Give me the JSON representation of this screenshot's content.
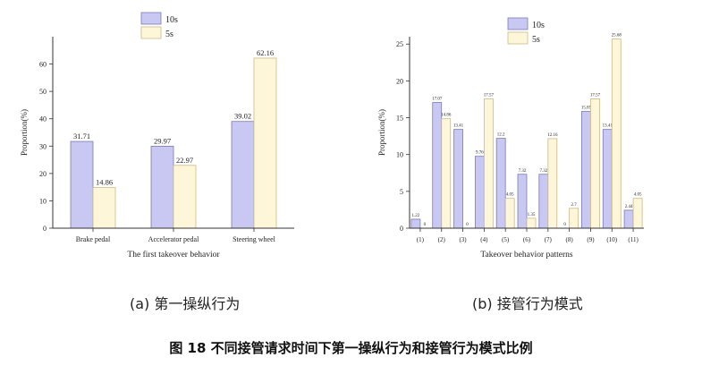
{
  "figure_caption": "图 18  不同接管请求时间下第一操纵行为和接管行为模式比例",
  "chart_data": [
    {
      "type": "bar",
      "caption": "(a) 第一操纵行为",
      "title": "",
      "xlabel": "The first takeover behavior",
      "ylabel": "Proportion(%)",
      "ylim": [
        0,
        70
      ],
      "yticks": [
        "0",
        "10",
        "20",
        "30",
        "40",
        "50",
        "60"
      ],
      "categories": [
        "Brake pedal",
        "Accelerator pedal",
        "Steering wheel"
      ],
      "legend_position": "top-center",
      "grid": false,
      "series": [
        {
          "name": "10s",
          "color": "#c8c8f2",
          "stroke": "#7a7ab8",
          "values": [
            31.71,
            29.97,
            39.02
          ],
          "labels": [
            "31.71",
            "29.97",
            "39.02"
          ]
        },
        {
          "name": "5s",
          "color": "#fdf6d8",
          "stroke": "#c9b98a",
          "values": [
            14.86,
            22.97,
            62.16
          ],
          "labels": [
            "14.86",
            "22.97",
            "62.16"
          ]
        }
      ]
    },
    {
      "type": "bar",
      "caption": "(b) 接管行为模式",
      "title": "",
      "xlabel": "Takeover behavior patterns",
      "ylabel": "Proportion(%)",
      "ylim": [
        0,
        26
      ],
      "yticks": [
        "0",
        "5",
        "10",
        "15",
        "20",
        "25"
      ],
      "categories": [
        "(1)",
        "(2)",
        "(3)",
        "(4)",
        "(5)",
        "(6)",
        "(7)",
        "(8)",
        "(9)",
        "(10)",
        "(11)"
      ],
      "legend_position": "top-left",
      "grid": false,
      "series": [
        {
          "name": "10s",
          "color": "#c8c8f2",
          "stroke": "#7a7ab8",
          "values": [
            1.22,
            17.07,
            13.41,
            9.76,
            12.2,
            7.32,
            7.32,
            0,
            15.85,
            13.41,
            2.44
          ],
          "labels": [
            "1.22",
            "17.07",
            "13.41",
            "9.76",
            "12.2",
            "7.32",
            "7.32",
            "0",
            "15.85",
            "13.41",
            "2.44"
          ]
        },
        {
          "name": "5s",
          "color": "#fdf6d8",
          "stroke": "#c9b98a",
          "values": [
            0,
            14.86,
            0,
            17.57,
            4.05,
            1.35,
            12.16,
            2.7,
            17.57,
            25.68,
            4.05
          ],
          "labels": [
            "0",
            "14.86",
            "0",
            "17.57",
            "4.05",
            "1.35",
            "12.16",
            "2.7",
            "17.57",
            "25.68",
            "4.05"
          ]
        }
      ]
    }
  ]
}
